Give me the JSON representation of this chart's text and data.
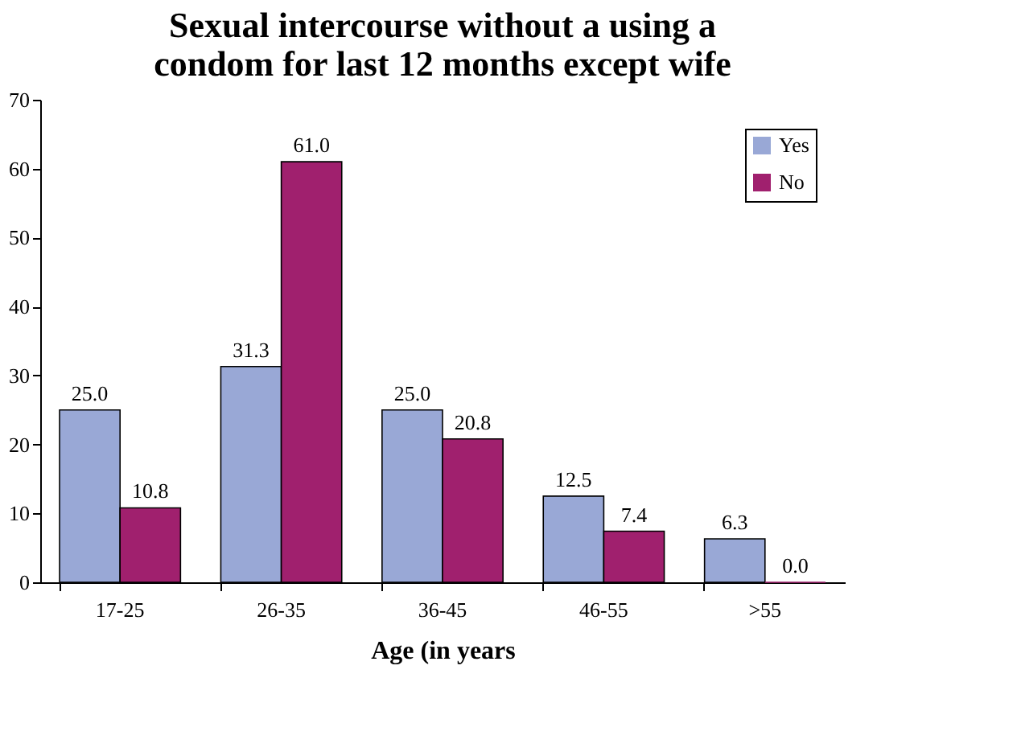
{
  "chart_data": {
    "type": "bar",
    "title": "Sexual intercourse without a using a condom for last 12 months except wife",
    "xlabel": "Age (in years",
    "categories": [
      "17-25",
      "26-35",
      "36-45",
      "46-55",
      ">55"
    ],
    "series": [
      {
        "name": "Yes",
        "color": "#99a8d6",
        "values": [
          25.0,
          31.3,
          25.0,
          12.5,
          6.3
        ],
        "value_labels": [
          "25.0",
          "31.3",
          "25.0",
          "12.5",
          "6.3"
        ]
      },
      {
        "name": "No",
        "color": "#a0206e",
        "values": [
          10.8,
          61.0,
          20.8,
          7.4,
          0.0
        ],
        "value_labels": [
          "10.8",
          "61.0",
          "20.8",
          "7.4",
          "0.0"
        ]
      }
    ],
    "ylim": [
      0,
      70
    ],
    "yticks": [
      0,
      10,
      20,
      30,
      40,
      50,
      60,
      70
    ],
    "grid": false,
    "legend": "top right"
  }
}
